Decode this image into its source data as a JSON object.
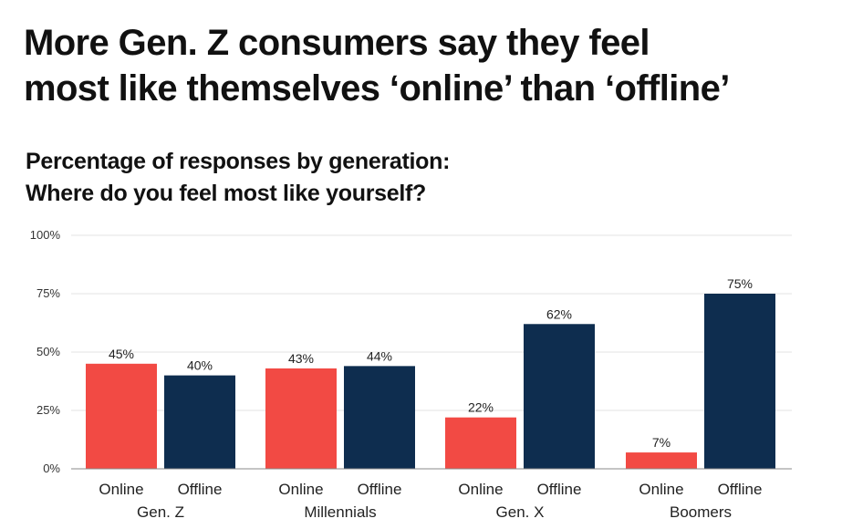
{
  "header": {
    "title_line1": "More Gen. Z consumers say they feel",
    "title_line2": "most like themselves ‘online’ than ‘offline’",
    "subtitle_line1": "Percentage of responses by generation:",
    "subtitle_line2": "Where do you feel most like yourself?"
  },
  "colors": {
    "online": "#f24a44",
    "offline": "#0e2d4f",
    "grid": "#e3e3e3",
    "axis": "#888888"
  },
  "chart_data": {
    "type": "bar",
    "categories": [
      "Gen. Z",
      "Millennials",
      "Gen. X",
      "Boomers"
    ],
    "series": [
      {
        "values": [
          45,
          43,
          22,
          7
        ],
        "bar_label": "Online",
        "data_labels": [
          "45%",
          "43%",
          "22%",
          "7%"
        ]
      },
      {
        "values": [
          40,
          44,
          62,
          75
        ],
        "bar_label": "Offline",
        "data_labels": [
          "40%",
          "44%",
          "62%",
          "75%"
        ]
      }
    ],
    "ylim": [
      0,
      100
    ],
    "yticks": [
      0,
      25,
      50,
      75,
      100
    ],
    "ytick_labels": [
      "0%",
      "25%",
      "50%",
      "75%",
      "100%"
    ],
    "grid": true,
    "legend": "none"
  }
}
